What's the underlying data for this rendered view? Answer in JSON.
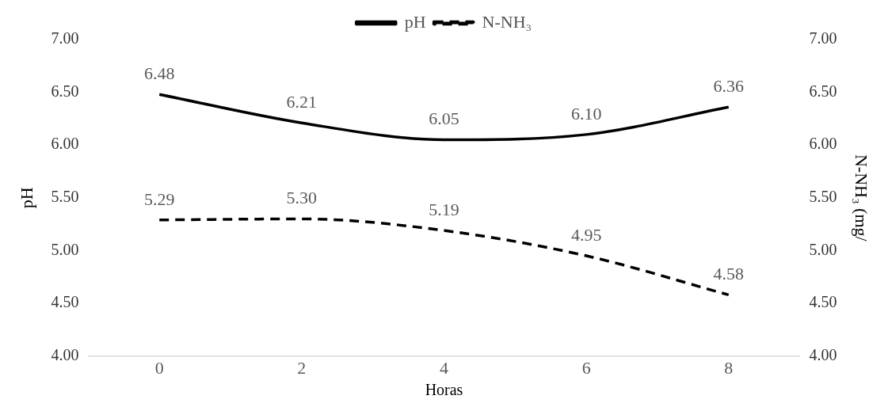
{
  "chart_data": {
    "type": "line",
    "xlabel": "Horas",
    "ylabel": "pH",
    "y2label": "N-NH₃ (mg/",
    "categories": [
      "0",
      "2",
      "4",
      "6",
      "8"
    ],
    "series": [
      {
        "name": "pH",
        "color": "#000000",
        "values": [
          6.48,
          6.21,
          6.05,
          6.1,
          6.36
        ],
        "value_labels": [
          "6.48",
          "6.21",
          "6.05",
          "6.10",
          "6.36"
        ],
        "line_style": "solid"
      },
      {
        "name": "N-NH₃",
        "color": "#000000",
        "values": [
          5.29,
          5.3,
          5.19,
          4.95,
          4.58
        ],
        "value_labels": [
          "5.29",
          "5.30",
          "5.19",
          "4.95",
          "4.58"
        ],
        "line_style": "dashed",
        "axis": "y2"
      }
    ],
    "ylim": [
      4,
      7
    ],
    "yticks": [
      {
        "value": 4,
        "label": "4.00"
      },
      {
        "value": 4.5,
        "label": "4.50"
      },
      {
        "value": 5,
        "label": "5.00"
      },
      {
        "value": 5.5,
        "label": "5.50"
      },
      {
        "value": 6,
        "label": "6.00"
      },
      {
        "value": 6.5,
        "label": "6.50"
      },
      {
        "value": 7,
        "label": "7.00"
      }
    ],
    "y2lim": [
      4,
      7
    ],
    "y2ticks": [
      {
        "value": 4,
        "label": "4.00"
      },
      {
        "value": 4.5,
        "label": "4.50"
      },
      {
        "value": 5,
        "label": "5.00"
      },
      {
        "value": 5.5,
        "label": "5.50"
      },
      {
        "value": 6,
        "label": "6.00"
      },
      {
        "value": 6.5,
        "label": "6.50"
      },
      {
        "value": 7,
        "label": "7.00"
      }
    ],
    "legend": "top",
    "marker": "none",
    "grid": false
  }
}
